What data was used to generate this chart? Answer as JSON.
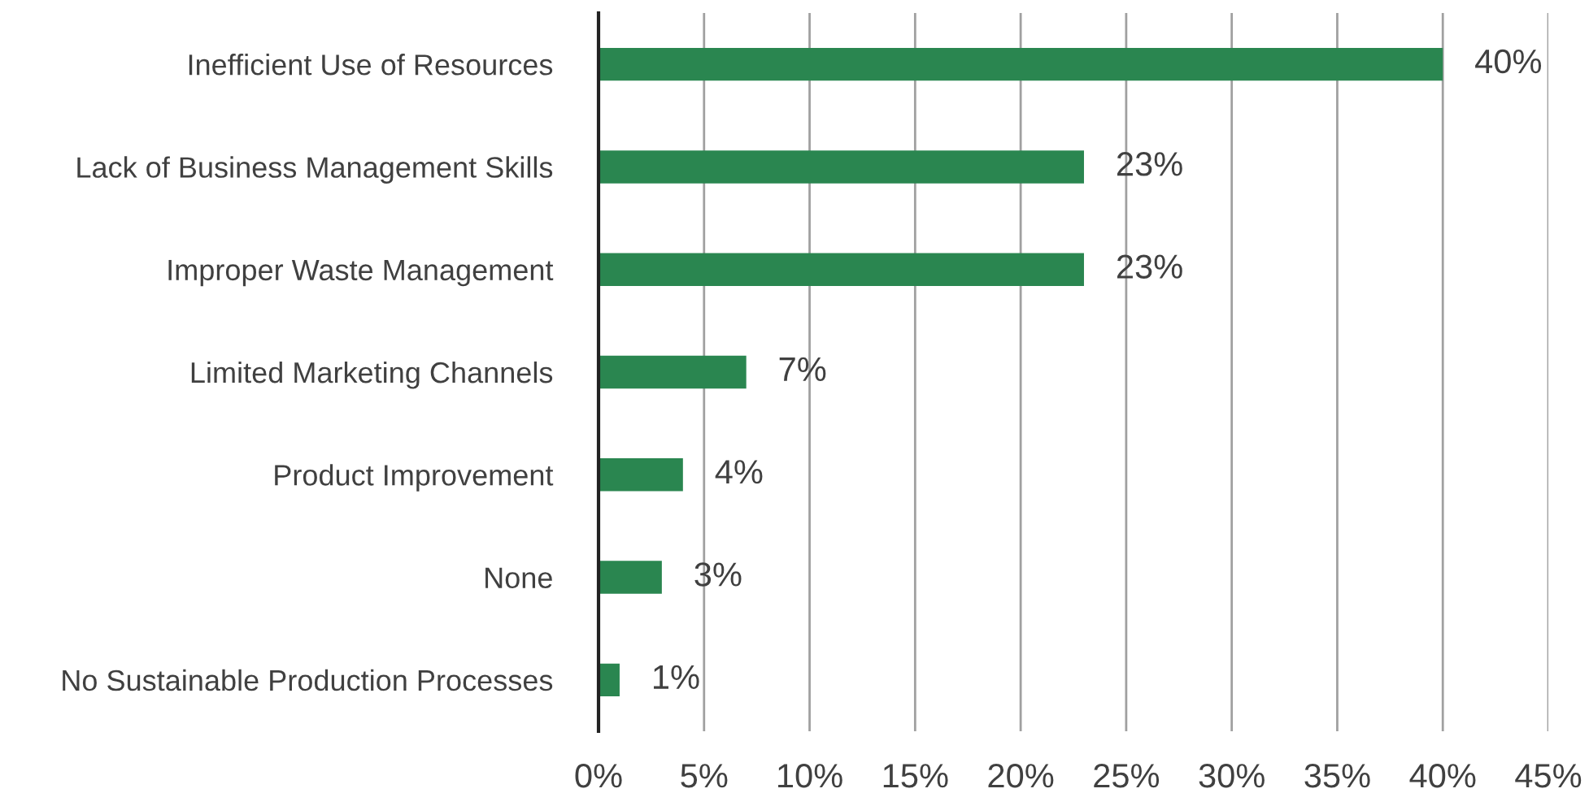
{
  "chart_data": {
    "type": "bar",
    "orientation": "horizontal",
    "categories": [
      "Inefficient Use of Resources",
      "Lack of Business Management Skills",
      "Improper Waste Management",
      "Limited Marketing Channels",
      "Product Improvement",
      "None",
      "No Sustainable Production Processes"
    ],
    "values": [
      40,
      23,
      23,
      7,
      4,
      3,
      1
    ],
    "color": "#2a8650",
    "value_labels": [
      "40%",
      "23%",
      "23%",
      "7%",
      "4%",
      "3%",
      "1%"
    ],
    "xlim": [
      0,
      45
    ],
    "xticks": [
      {
        "value": 0,
        "label": "0%"
      },
      {
        "value": 5,
        "label": "5%"
      },
      {
        "value": 10,
        "label": "10%"
      },
      {
        "value": 15,
        "label": "15%"
      },
      {
        "value": 20,
        "label": "20%"
      },
      {
        "value": 25,
        "label": "25%"
      },
      {
        "value": 30,
        "label": "30%"
      },
      {
        "value": 35,
        "label": "35%"
      },
      {
        "value": 40,
        "label": "40%"
      },
      {
        "value": 45,
        "label": "45%"
      }
    ],
    "grid": "x",
    "legend": false
  }
}
